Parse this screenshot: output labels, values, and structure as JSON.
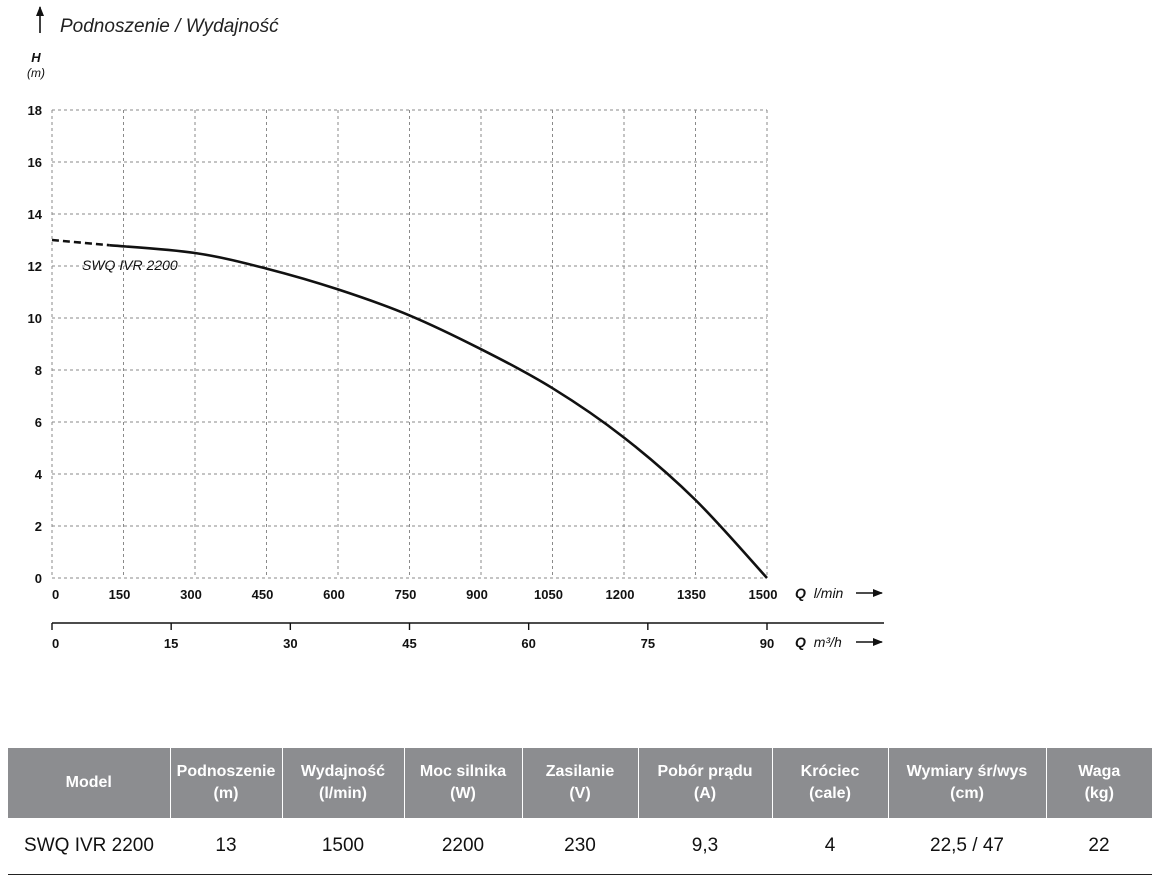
{
  "chart_data": {
    "type": "line",
    "title": "Podnoszenie / Wydajność",
    "y_axis": {
      "label": "H",
      "unit": "(m)",
      "range": [
        0,
        18
      ],
      "ticks": [
        "0",
        "2",
        "4",
        "6",
        "8",
        "10",
        "12",
        "14",
        "16",
        "18"
      ]
    },
    "x_axis_primary": {
      "label_prefix": "Q",
      "unit": "l/min",
      "range": [
        0,
        1500
      ],
      "ticks": [
        "0",
        "150",
        "300",
        "450",
        "600",
        "750",
        "900",
        "1050",
        "1200",
        "1350",
        "1500"
      ]
    },
    "x_axis_secondary": {
      "label_prefix": "Q",
      "unit": "m³/h",
      "range": [
        0,
        90
      ],
      "ticks": [
        "0",
        "15",
        "30",
        "45",
        "60",
        "75",
        "90"
      ]
    },
    "grid": true,
    "series": [
      {
        "name": "SWQ IVR 2200",
        "dashed_until_x": 120,
        "x": [
          0,
          120,
          300,
          450,
          600,
          750,
          900,
          1050,
          1200,
          1350,
          1500
        ],
        "y": [
          13.0,
          12.8,
          12.5,
          11.9,
          11.1,
          10.1,
          8.8,
          7.3,
          5.4,
          3.0,
          0.0
        ]
      }
    ]
  },
  "table": {
    "headers": [
      [
        "Model"
      ],
      [
        "Podnoszenie",
        "(m)"
      ],
      [
        "Wydajność",
        "(l/min)"
      ],
      [
        "Moc silnika",
        "(W)"
      ],
      [
        "Zasilanie",
        "(V)"
      ],
      [
        "Pobór prądu",
        "(A)"
      ],
      [
        "Króciec",
        "(cale)"
      ],
      [
        "Wymiary śr/wys",
        "(cm)"
      ],
      [
        "Waga",
        "(kg)"
      ]
    ],
    "rows": [
      [
        "SWQ IVR 2200",
        "13",
        "1500",
        "2200",
        "230",
        "9,3",
        "4",
        "22,5 / 47",
        "22"
      ]
    ]
  }
}
